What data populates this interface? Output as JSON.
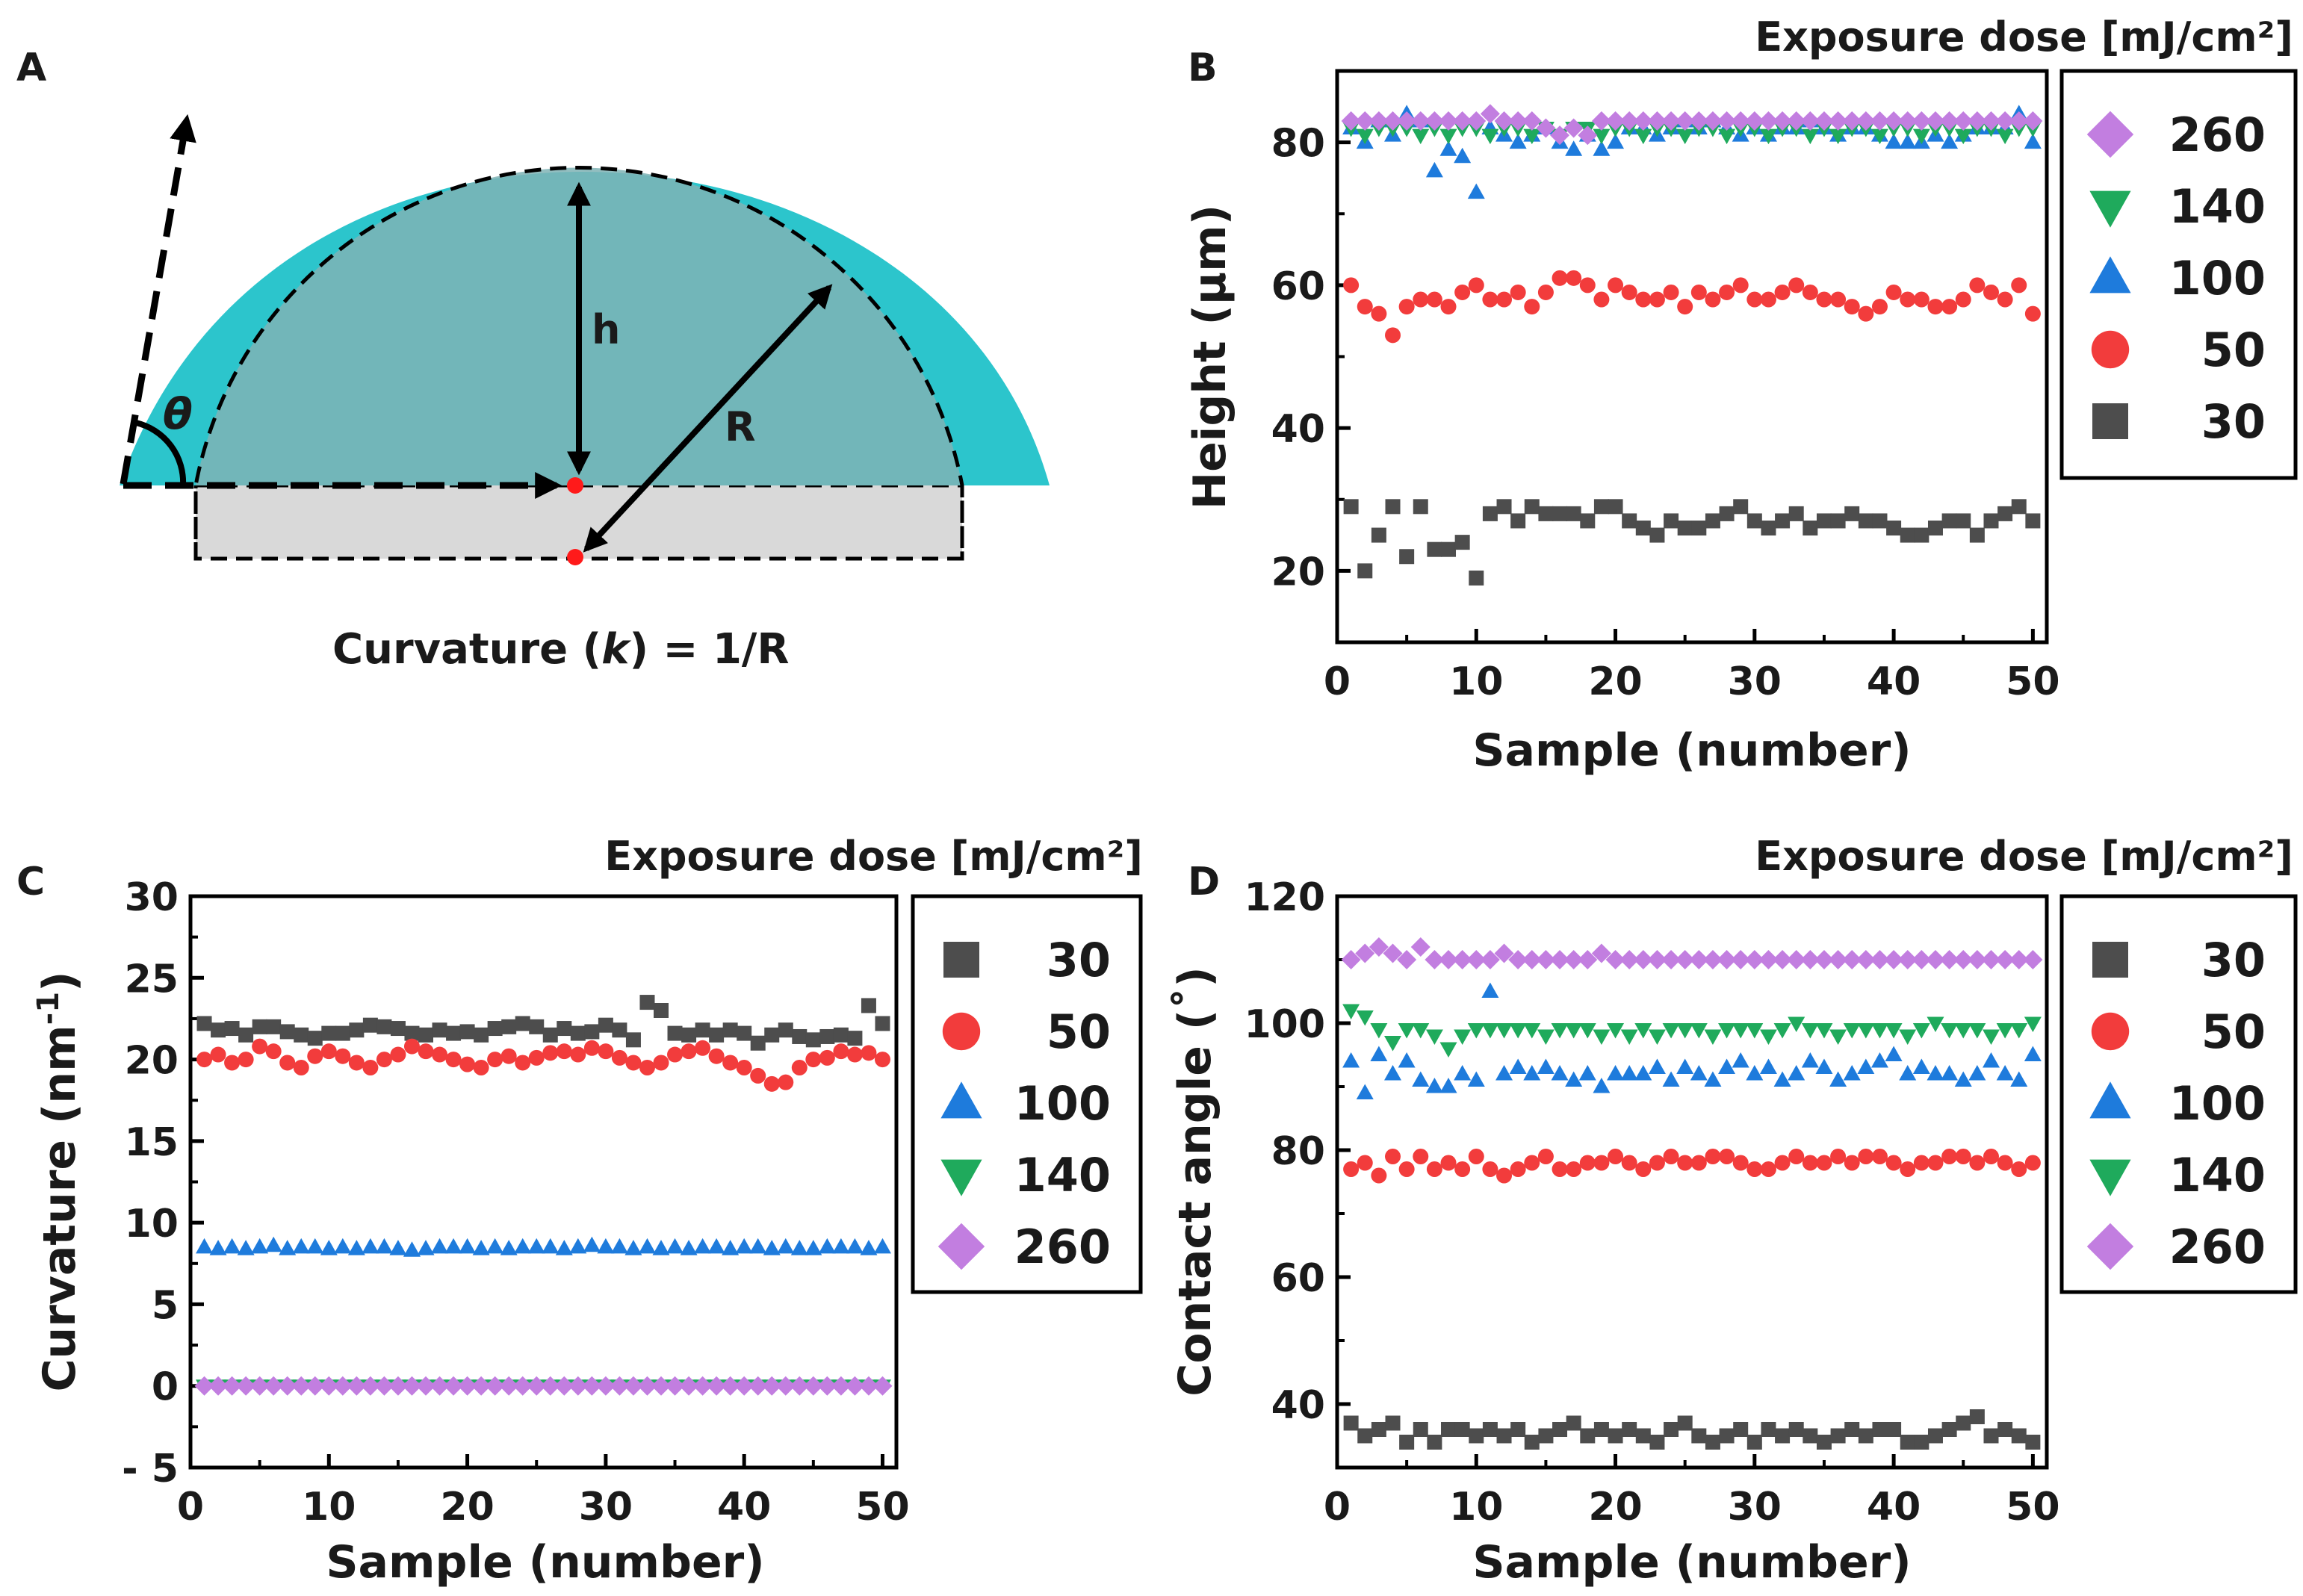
{
  "panel_labels": {
    "a": "A",
    "b": "B",
    "c": "C",
    "d": "D"
  },
  "colors": {
    "d30": "#4d4d4d",
    "d50": "#f23c3c",
    "d100": "#1e7bdc",
    "d140": "#1faa5c",
    "d260": "#c27ee0",
    "cap": "#2cc5cc",
    "cap_inner": "#7fb3b5",
    "substrate": "#d9d9d9"
  },
  "schematic": {
    "h_label": "h",
    "r_label": "R",
    "theta_label": "θ",
    "caption_pre": "Curvature (",
    "caption_k": "k",
    "caption_post": ") = 1/R"
  },
  "chart_data": [
    {
      "id": "B",
      "type": "scatter",
      "title": "Exposure dose [mJ/cm²]",
      "xlabel": "Sample (number)",
      "ylabel": "Height (µm)",
      "xlim": [
        0,
        51
      ],
      "ylim": [
        10,
        90
      ],
      "xticks": [
        "0",
        "10",
        "20",
        "30",
        "40",
        "50"
      ],
      "yticks": [
        "20",
        "40",
        "60",
        "80"
      ],
      "ytick_values": [
        20,
        40,
        60,
        80
      ],
      "legend": [
        "260",
        "140",
        "100",
        "50",
        "30"
      ],
      "series": [
        {
          "name": "30",
          "marker": "square",
          "x_start": 1,
          "y_start": 29,
          "values": [
            29,
            20,
            25,
            29,
            22,
            29,
            23,
            23,
            24,
            19,
            28,
            29,
            27,
            29,
            28,
            28,
            28,
            27,
            29,
            29,
            27,
            26,
            25,
            27,
            26,
            26,
            27,
            28,
            29,
            27,
            26,
            27,
            28,
            26,
            27,
            27,
            28,
            27,
            27,
            26,
            25,
            25,
            26,
            27,
            27,
            25,
            27,
            28,
            29,
            27
          ]
        },
        {
          "name": "50",
          "marker": "circle",
          "x_start": 1,
          "y_start": 60,
          "values": [
            60,
            57,
            56,
            53,
            57,
            58,
            58,
            57,
            59,
            60,
            58,
            58,
            59,
            57,
            59,
            61,
            61,
            60,
            58,
            60,
            59,
            58,
            58,
            59,
            57,
            59,
            58,
            59,
            60,
            58,
            58,
            59,
            60,
            59,
            58,
            58,
            57,
            56,
            57,
            59,
            58,
            58,
            57,
            57,
            58,
            60,
            59,
            58,
            60,
            56
          ]
        },
        {
          "name": "100",
          "marker": "triangle",
          "x_start": 1,
          "y_start": 82,
          "values": [
            82,
            80,
            83,
            81,
            84,
            83,
            76,
            79,
            78,
            73,
            82,
            81,
            80,
            81,
            82,
            80,
            79,
            81,
            79,
            80,
            82,
            82,
            81,
            82,
            83,
            82,
            83,
            82,
            81,
            82,
            81,
            82,
            82,
            83,
            82,
            81,
            82,
            82,
            81,
            80,
            80,
            80,
            81,
            80,
            81,
            82,
            82,
            82,
            84,
            80
          ]
        },
        {
          "name": "140",
          "marker": "triangle-down",
          "x_start": 1,
          "y_start": 82,
          "values": [
            82,
            81,
            82,
            82,
            82,
            81,
            82,
            81,
            82,
            82,
            81,
            82,
            82,
            81,
            82,
            81,
            82,
            82,
            81,
            82,
            82,
            81,
            82,
            82,
            81,
            82,
            82,
            81,
            82,
            82,
            81,
            82,
            82,
            81,
            82,
            81,
            82,
            82,
            81,
            82,
            82,
            81,
            82,
            82,
            81,
            82,
            82,
            81,
            82,
            82
          ]
        },
        {
          "name": "260",
          "marker": "diamond",
          "x_start": 1,
          "y_start": 83,
          "values": [
            83,
            83,
            83,
            83,
            83,
            83,
            83,
            83,
            83,
            83,
            84,
            83,
            83,
            83,
            82,
            81,
            82,
            81,
            83,
            83,
            83,
            83,
            83,
            83,
            83,
            83,
            83,
            83,
            83,
            83,
            83,
            83,
            83,
            83,
            83,
            83,
            83,
            83,
            83,
            83,
            83,
            83,
            83,
            83,
            83,
            83,
            83,
            83,
            83,
            83
          ]
        }
      ]
    },
    {
      "id": "C",
      "type": "scatter",
      "title": "Exposure dose [mJ/cm²]",
      "xlabel": "Sample (number)",
      "ylabel_pre": "Curvature (nm",
      "ylabel_sup": "-1",
      "ylabel_post": ")",
      "xlim": [
        0,
        51
      ],
      "ylim": [
        -5,
        30
      ],
      "xticks": [
        "0",
        "10",
        "20",
        "30",
        "40",
        "50"
      ],
      "yticks": [
        "- 5",
        "0",
        "5",
        "10",
        "15",
        "20",
        "25",
        "30"
      ],
      "ytick_values": [
        -5,
        0,
        5,
        10,
        15,
        20,
        25,
        30
      ],
      "legend": [
        "30",
        "50",
        "100",
        "140",
        "260"
      ],
      "series": [
        {
          "name": "30",
          "marker": "square",
          "x_start": 1,
          "y_start": 22.2,
          "values": [
            22.2,
            21.8,
            21.9,
            21.5,
            22,
            22,
            21.7,
            21.5,
            21.3,
            21.6,
            21.6,
            21.8,
            22.1,
            22,
            21.9,
            21.6,
            21.5,
            21.8,
            21.6,
            21.7,
            21.5,
            21.9,
            22,
            22.2,
            22,
            21.5,
            21.9,
            21.6,
            21.7,
            22.1,
            21.8,
            21.2,
            23.5,
            23,
            21.6,
            21.5,
            21.8,
            21.5,
            21.8,
            21.6,
            21,
            21.5,
            21.8,
            21.4,
            21.2,
            21.4,
            21.5,
            21.3,
            23.3,
            22.2
          ]
        },
        {
          "name": "50",
          "marker": "circle",
          "x_start": 1,
          "y_start": 20,
          "values": [
            20,
            20.3,
            19.8,
            20,
            20.8,
            20.5,
            19.8,
            19.5,
            20.2,
            20.5,
            20.2,
            19.8,
            19.5,
            20,
            20.3,
            20.8,
            20.5,
            20.3,
            20,
            19.7,
            19.5,
            20,
            20.2,
            19.8,
            20.1,
            20.4,
            20.5,
            20.3,
            20.7,
            20.5,
            20.1,
            19.8,
            19.5,
            19.8,
            20.3,
            20.5,
            20.7,
            20.2,
            19.8,
            19.5,
            19,
            18.5,
            18.6,
            19.5,
            20,
            20.1,
            20.5,
            20.3,
            20.4,
            20
          ]
        },
        {
          "name": "100",
          "marker": "triangle",
          "x_start": 1,
          "y_start": 8.5,
          "values": [
            8.5,
            8.4,
            8.5,
            8.4,
            8.5,
            8.6,
            8.4,
            8.5,
            8.5,
            8.4,
            8.5,
            8.4,
            8.5,
            8.5,
            8.4,
            8.3,
            8.4,
            8.5,
            8.5,
            8.5,
            8.4,
            8.5,
            8.4,
            8.5,
            8.5,
            8.5,
            8.4,
            8.5,
            8.6,
            8.5,
            8.5,
            8.4,
            8.5,
            8.4,
            8.5,
            8.4,
            8.5,
            8.5,
            8.4,
            8.5,
            8.5,
            8.4,
            8.5,
            8.4,
            8.4,
            8.5,
            8.5,
            8.5,
            8.4,
            8.5
          ]
        },
        {
          "name": "140",
          "marker": "triangle-down",
          "x_start": 1,
          "y_start": 0,
          "values": [
            0,
            0,
            0,
            0,
            0,
            0,
            0,
            0,
            0,
            0,
            0,
            0,
            0,
            0,
            0,
            0,
            0,
            0,
            0,
            0,
            0,
            0,
            0,
            0,
            0,
            0,
            0,
            0,
            0,
            0,
            0,
            0,
            0,
            0,
            0,
            0,
            0,
            0,
            0,
            0,
            0,
            0,
            0,
            0,
            0,
            0,
            0,
            0,
            0,
            0
          ]
        },
        {
          "name": "260",
          "marker": "diamond",
          "x_start": 1,
          "y_start": 0,
          "values": [
            0,
            0,
            0,
            0,
            0,
            0,
            0,
            0,
            0,
            0,
            0,
            0,
            0,
            0,
            0,
            0,
            0,
            0,
            0,
            0,
            0,
            0,
            0,
            0,
            0,
            0,
            0,
            0,
            0,
            0,
            0,
            0,
            0,
            0,
            0,
            0,
            0,
            0,
            0,
            0,
            0,
            0,
            0,
            0,
            0,
            0,
            0,
            0,
            0,
            0
          ]
        }
      ]
    },
    {
      "id": "D",
      "type": "scatter",
      "title": "Exposure dose [mJ/cm²]",
      "xlabel": "Sample (number)",
      "ylabel": "Contact angle (˚)",
      "xlim": [
        0,
        51
      ],
      "ylim": [
        30,
        120
      ],
      "xticks": [
        "0",
        "10",
        "20",
        "30",
        "40",
        "50"
      ],
      "yticks": [
        "40",
        "60",
        "80",
        "100",
        "120"
      ],
      "ytick_values": [
        40,
        60,
        80,
        100,
        120
      ],
      "legend": [
        "30",
        "50",
        "100",
        "140",
        "260"
      ],
      "series": [
        {
          "name": "30",
          "marker": "square",
          "x_start": 1,
          "y_start": 37,
          "values": [
            37,
            35,
            36,
            37,
            34,
            36,
            34,
            36,
            36,
            35,
            36,
            35,
            36,
            34,
            35,
            36,
            37,
            35,
            36,
            35,
            36,
            35,
            34,
            36,
            37,
            35,
            34,
            35,
            36,
            34,
            36,
            35,
            36,
            35,
            34,
            35,
            36,
            35,
            36,
            36,
            34,
            34,
            35,
            36,
            37,
            38,
            35,
            36,
            35,
            34
          ]
        },
        {
          "name": "50",
          "marker": "circle",
          "x_start": 1,
          "y_start": 77,
          "values": [
            77,
            78,
            76,
            79,
            77,
            79,
            77,
            78,
            77,
            79,
            77,
            76,
            77,
            78,
            79,
            77,
            77,
            78,
            78,
            79,
            78,
            77,
            78,
            79,
            78,
            78,
            79,
            79,
            78,
            77,
            77,
            78,
            79,
            78,
            78,
            79,
            78,
            79,
            79,
            78,
            77,
            78,
            78,
            79,
            79,
            78,
            79,
            78,
            77,
            78
          ]
        },
        {
          "name": "100",
          "marker": "triangle",
          "x_start": 1,
          "y_start": 94,
          "values": [
            94,
            89,
            95,
            92,
            94,
            91,
            90,
            90,
            92,
            91,
            105,
            92,
            93,
            92,
            93,
            92,
            91,
            92,
            90,
            92,
            92,
            92,
            93,
            91,
            93,
            92,
            91,
            93,
            94,
            92,
            93,
            91,
            92,
            94,
            93,
            91,
            92,
            93,
            94,
            95,
            92,
            93,
            92,
            92,
            91,
            92,
            94,
            92,
            91,
            95
          ]
        },
        {
          "name": "140",
          "marker": "triangle-down",
          "x_start": 1,
          "y_start": 102,
          "values": [
            102,
            101,
            99,
            97,
            99,
            99,
            98,
            96,
            98,
            99,
            99,
            99,
            99,
            99,
            98,
            99,
            99,
            99,
            98,
            99,
            98,
            99,
            98,
            99,
            99,
            99,
            98,
            99,
            99,
            99,
            98,
            99,
            100,
            99,
            99,
            98,
            99,
            99,
            99,
            99,
            98,
            99,
            100,
            99,
            99,
            99,
            98,
            99,
            99,
            100
          ]
        },
        {
          "name": "260",
          "marker": "diamond",
          "x_start": 1,
          "y_start": 110,
          "values": [
            110,
            111,
            112,
            111,
            110,
            112,
            110,
            110,
            110,
            110,
            110,
            111,
            110,
            110,
            110,
            110,
            110,
            110,
            111,
            110,
            110,
            110,
            110,
            110,
            110,
            110,
            110,
            110,
            110,
            110,
            110,
            110,
            110,
            110,
            110,
            110,
            110,
            110,
            110,
            110,
            110,
            110,
            110,
            110,
            110,
            110,
            110,
            110,
            110,
            110
          ]
        }
      ]
    }
  ]
}
